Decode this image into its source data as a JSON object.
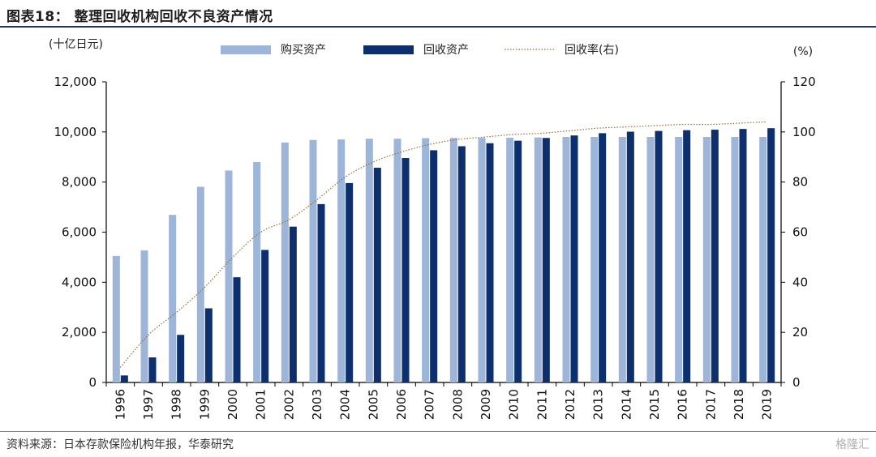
{
  "header": {
    "title": "图表18：  整理回收机构回收不良资产情况"
  },
  "footer": {
    "source": "资料来源：日本存款保险机构年报，华泰研究",
    "watermark": "格隆汇"
  },
  "chart_data": {
    "type": "bar",
    "title": "图表18：  整理回收机构回收不良资产情况",
    "ylabel": "(十亿日元)",
    "y2label": "(%)",
    "ylim": [
      0,
      12000
    ],
    "y2lim": [
      0,
      120
    ],
    "yticks": [
      "0",
      "2,000",
      "4,000",
      "6,000",
      "8,000",
      "10,000",
      "12,000"
    ],
    "y2ticks": [
      "0",
      "20",
      "40",
      "60",
      "80",
      "100",
      "120"
    ],
    "legend_position": "top",
    "grid": false,
    "categories": [
      "1996",
      "1997",
      "1998",
      "1999",
      "2000",
      "2001",
      "2002",
      "2003",
      "2004",
      "2005",
      "2006",
      "2007",
      "2008",
      "2009",
      "2010",
      "2011",
      "2012",
      "2013",
      "2014",
      "2015",
      "2016",
      "2017",
      "2018",
      "2019"
    ],
    "series": [
      {
        "name": "购买资产",
        "type": "bar",
        "axis": "left",
        "color": "#9db5d9",
        "values": [
          5050,
          5270,
          6690,
          7810,
          8460,
          8800,
          9580,
          9680,
          9700,
          9730,
          9730,
          9750,
          9760,
          9760,
          9770,
          9780,
          9800,
          9800,
          9800,
          9800,
          9800,
          9800,
          9800,
          9800
        ]
      },
      {
        "name": "回收资产",
        "type": "bar",
        "axis": "left",
        "color": "#0d2f6e",
        "values": [
          280,
          1000,
          1900,
          2960,
          4200,
          5290,
          6220,
          7120,
          7960,
          8570,
          8960,
          9270,
          9430,
          9550,
          9650,
          9760,
          9860,
          9950,
          10010,
          10040,
          10070,
          10090,
          10120,
          10150
        ]
      },
      {
        "name": "回收率(右)",
        "type": "line",
        "axis": "right",
        "color": "#9c6b2e",
        "style": "dotted",
        "values": [
          6,
          19,
          28,
          38,
          50,
          60,
          65,
          73,
          82,
          88,
          92,
          95,
          97,
          98,
          99,
          99.5,
          100.5,
          101.5,
          102,
          102.5,
          103,
          103,
          103.5,
          104
        ]
      }
    ]
  }
}
